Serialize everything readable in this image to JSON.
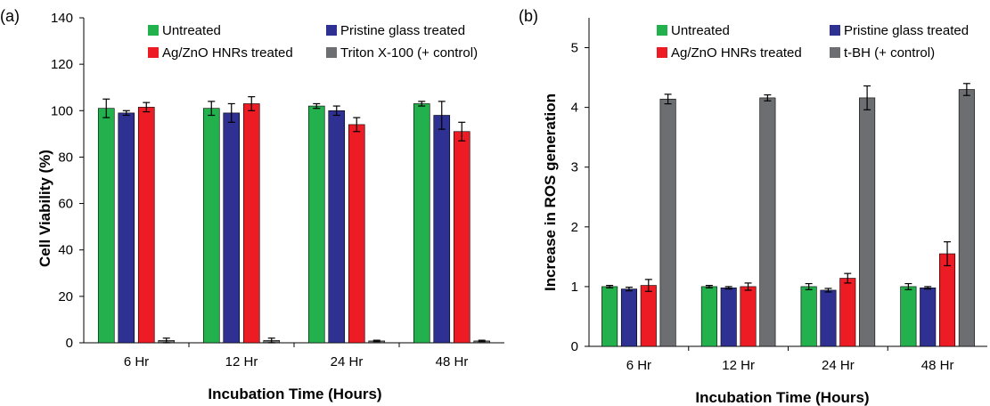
{
  "figure": {
    "panels": [
      {
        "panel_label": "(a)",
        "ylabel": "Cell Viability (%)",
        "xlabel": "Incubation Time (Hours)",
        "legend": [
          "Untreated",
          "Pristine glass treated",
          "Ag/ZnO HNRs treated",
          "Triton X-100 (+ control)"
        ]
      },
      {
        "panel_label": "(b)",
        "ylabel": "Increase in ROS generation",
        "xlabel": "Incubation Time (Hours)",
        "legend": [
          "Untreated",
          "Pristine glass treated",
          "Ag/ZnO HNRs treated",
          "t-BH (+ control)"
        ]
      }
    ]
  },
  "colors": {
    "untreated": "#22b14c",
    "pristine": "#2e3192",
    "agzno": "#ed1c24",
    "control": "#6d6e71"
  },
  "chart_data": [
    {
      "type": "bar",
      "categories": [
        "6 Hr",
        "12 Hr",
        "24 Hr",
        "48 Hr"
      ],
      "ylim": [
        0,
        140
      ],
      "yticks": [
        0,
        20,
        40,
        60,
        80,
        100,
        120,
        140
      ],
      "ylabel": "Cell Viability (%)",
      "xlabel": "Incubation Time (Hours)",
      "grid": false,
      "legend_position": "top",
      "series": [
        {
          "name": "Untreated",
          "values": [
            101,
            101,
            102,
            103
          ],
          "errors": [
            4,
            3,
            1,
            1
          ]
        },
        {
          "name": "Pristine glass treated",
          "values": [
            99,
            99,
            100,
            98
          ],
          "errors": [
            1,
            4,
            2,
            6
          ]
        },
        {
          "name": "Ag/ZnO HNRs treated",
          "values": [
            101.5,
            103,
            94,
            91
          ],
          "errors": [
            2,
            3,
            3,
            4
          ]
        },
        {
          "name": "Triton X-100 (+ control)",
          "values": [
            1,
            1,
            0.8,
            0.8
          ],
          "errors": [
            1,
            1,
            0.3,
            0.3
          ]
        }
      ]
    },
    {
      "type": "bar",
      "categories": [
        "6 Hr",
        "12 Hr",
        "24 Hr",
        "48 Hr"
      ],
      "ylim": [
        0,
        5.5
      ],
      "yticks": [
        0,
        1,
        2,
        3,
        4,
        5
      ],
      "ylabel": "Increase in ROS generation",
      "xlabel": "Incubation Time (Hours)",
      "grid": false,
      "legend_position": "top",
      "series": [
        {
          "name": "Untreated",
          "values": [
            1.0,
            1.0,
            1.0,
            1.0
          ],
          "errors": [
            0.02,
            0.02,
            0.05,
            0.05
          ]
        },
        {
          "name": "Pristine glass treated",
          "values": [
            0.96,
            0.98,
            0.94,
            0.98
          ],
          "errors": [
            0.03,
            0.02,
            0.03,
            0.02
          ]
        },
        {
          "name": "Ag/ZnO HNRs treated",
          "values": [
            1.02,
            1.0,
            1.14,
            1.55
          ],
          "errors": [
            0.1,
            0.06,
            0.08,
            0.2
          ]
        },
        {
          "name": "t-BH (+ control)",
          "values": [
            4.14,
            4.16,
            4.16,
            4.3
          ],
          "errors": [
            0.08,
            0.05,
            0.2,
            0.1
          ]
        }
      ]
    }
  ]
}
